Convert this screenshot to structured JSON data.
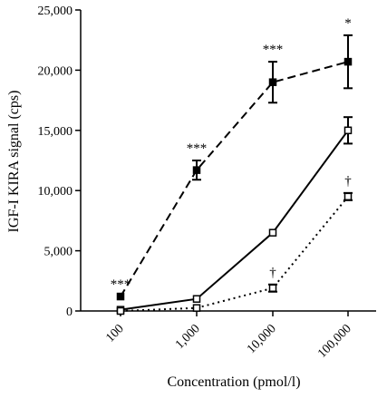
{
  "chart_data": {
    "type": "line",
    "xlabel": "Concentration (pmol/l)",
    "ylabel": "IGF-I KIRA signal (cps)",
    "x_scale": "log",
    "categories": [
      "100",
      "1,000",
      "10,000",
      "100,000"
    ],
    "x": [
      100,
      1000,
      10000,
      100000
    ],
    "ylim": [
      0,
      25000
    ],
    "yticks": [
      0,
      5000,
      10000,
      15000,
      20000,
      25000
    ],
    "ytick_labels": [
      "0",
      "5,000",
      "10,000",
      "15,000",
      "20,000",
      "25,000"
    ],
    "grid": false,
    "legend": "none",
    "series": [
      {
        "line_style": "dashed",
        "marker": "filled-square",
        "values": [
          1200,
          11700,
          19000,
          20700
        ],
        "error": [
          0,
          800,
          1700,
          2200
        ],
        "annotations": [
          "***",
          "***",
          "***",
          "*"
        ]
      },
      {
        "line_style": "solid",
        "marker": "open-square",
        "values": [
          100,
          1000,
          6500,
          15000
        ],
        "error": [
          0,
          0,
          0,
          1100
        ],
        "annotations": [
          "",
          "",
          "",
          ""
        ]
      },
      {
        "line_style": "dotted",
        "marker": "open-square",
        "values": [
          0,
          250,
          1900,
          9500
        ],
        "error": [
          0,
          0,
          300,
          300
        ],
        "annotations": [
          "",
          "",
          "†",
          "†"
        ]
      }
    ],
    "colors": {
      "line": "#000000",
      "background": "#ffffff"
    }
  }
}
